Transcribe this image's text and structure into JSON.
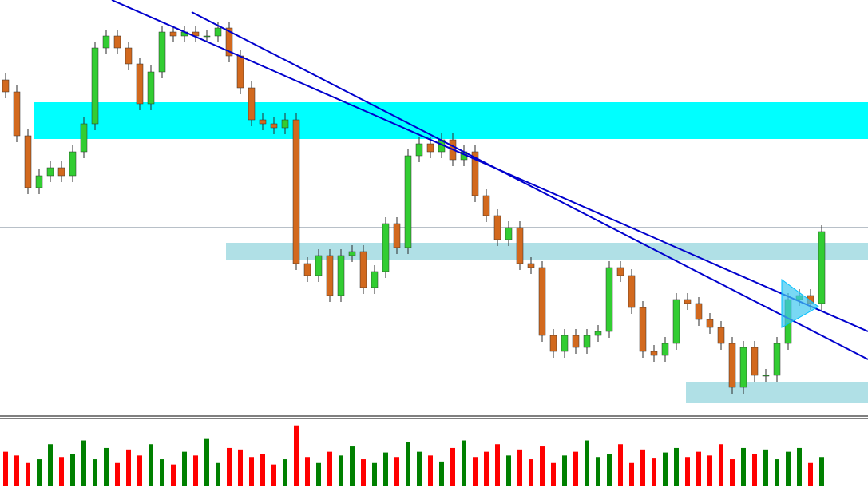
{
  "chart_data": {
    "type": "candlestick",
    "up_color": "#32cd32",
    "down_color": "#d2691e",
    "outline_color": "#2a2a2a",
    "volume_up_color": "#008000",
    "volume_down_color": "#ff0000",
    "ylim": [
      0,
      520
    ],
    "volume_ylim": [
      0,
      85
    ],
    "open": [
      420,
      405,
      350,
      285,
      300,
      310,
      300,
      330,
      365,
      460,
      475,
      460,
      440,
      390,
      430,
      480,
      475,
      480,
      475,
      475,
      485,
      450,
      410,
      370,
      365,
      360,
      370,
      190,
      175,
      200,
      150,
      200,
      205,
      160,
      180,
      240,
      210,
      325,
      340,
      330,
      345,
      320,
      330,
      275,
      250,
      220,
      235,
      190,
      185,
      100,
      80,
      100,
      85,
      100,
      105,
      185,
      175,
      135,
      80,
      75,
      90,
      145,
      140,
      120,
      110,
      90,
      35,
      85,
      50,
      50,
      90,
      145,
      150,
      140
    ],
    "high": [
      428,
      413,
      358,
      308,
      318,
      318,
      338,
      373,
      468,
      483,
      483,
      468,
      448,
      438,
      488,
      488,
      488,
      488,
      483,
      493,
      493,
      458,
      418,
      378,
      373,
      378,
      378,
      198,
      208,
      208,
      208,
      213,
      213,
      188,
      248,
      248,
      333,
      348,
      348,
      353,
      353,
      338,
      338,
      283,
      258,
      243,
      243,
      198,
      193,
      108,
      108,
      108,
      108,
      113,
      193,
      193,
      183,
      143,
      88,
      98,
      153,
      153,
      148,
      128,
      118,
      98,
      93,
      93,
      58,
      98,
      153,
      158,
      158,
      238
    ],
    "low": [
      397,
      342,
      277,
      277,
      292,
      292,
      292,
      322,
      357,
      452,
      452,
      432,
      382,
      382,
      422,
      467,
      467,
      467,
      467,
      467,
      442,
      402,
      362,
      357,
      352,
      352,
      182,
      167,
      167,
      142,
      142,
      192,
      152,
      152,
      172,
      202,
      202,
      317,
      322,
      322,
      312,
      312,
      267,
      242,
      212,
      212,
      182,
      177,
      92,
      72,
      72,
      77,
      77,
      92,
      97,
      167,
      127,
      72,
      67,
      67,
      82,
      132,
      112,
      102,
      82,
      27,
      27,
      42,
      42,
      42,
      82,
      137,
      132,
      132
    ],
    "close": [
      405,
      350,
      285,
      300,
      310,
      300,
      330,
      365,
      460,
      475,
      460,
      440,
      390,
      430,
      480,
      475,
      480,
      475,
      475,
      485,
      450,
      410,
      370,
      365,
      360,
      370,
      190,
      175,
      200,
      150,
      200,
      205,
      160,
      180,
      240,
      210,
      325,
      340,
      330,
      345,
      320,
      330,
      275,
      250,
      220,
      235,
      190,
      185,
      100,
      80,
      100,
      85,
      100,
      105,
      185,
      175,
      135,
      80,
      75,
      90,
      145,
      140,
      120,
      110,
      90,
      35,
      85,
      50,
      50,
      90,
      145,
      150,
      140,
      230
    ],
    "volume": [
      45,
      40,
      30,
      35,
      55,
      38,
      42,
      60,
      35,
      50,
      30,
      48,
      40,
      55,
      35,
      28,
      45,
      40,
      62,
      30,
      50,
      48,
      38,
      42,
      28,
      35,
      80,
      38,
      30,
      45,
      40,
      52,
      35,
      30,
      44,
      38,
      58,
      45,
      40,
      32,
      50,
      60,
      38,
      45,
      55,
      40,
      48,
      35,
      52,
      30,
      40,
      45,
      60,
      38,
      42,
      55,
      30,
      48,
      36,
      44,
      50,
      38,
      45,
      40,
      55,
      35,
      50,
      42,
      48,
      35,
      45,
      50,
      30,
      38
    ]
  }
}
